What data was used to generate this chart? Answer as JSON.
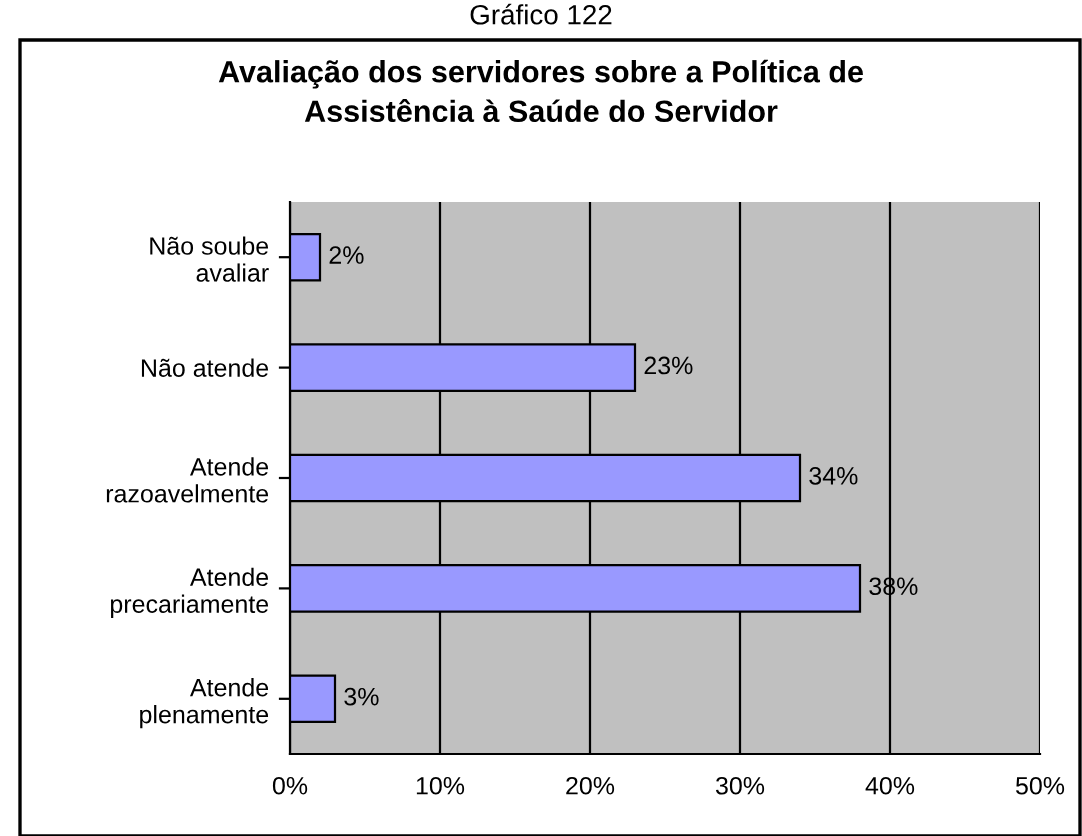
{
  "chart_data": {
    "type": "bar",
    "orientation": "horizontal",
    "title": "Avaliação dos servidores sobre a Política de\nAssistência à Saúde do Servidor",
    "annotations": [
      "Gráfico 122"
    ],
    "categories": [
      "Não soube\navaliar",
      "Não atende",
      "Atende\nrazoavelmente",
      "Atende\nprecariamente",
      "Atende\nplenamente"
    ],
    "values": [
      2,
      23,
      34,
      38,
      3
    ],
    "value_labels": [
      "2%",
      "23%",
      "34%",
      "38%",
      "3%"
    ],
    "color": "#9999ff",
    "xlim": [
      0,
      50
    ],
    "xticks": [
      {
        "value": 0,
        "label": "0%"
      },
      {
        "value": 10,
        "label": "10%"
      },
      {
        "value": 20,
        "label": "20%"
      },
      {
        "value": 30,
        "label": "30%"
      },
      {
        "value": 40,
        "label": "40%"
      },
      {
        "value": 50,
        "label": "50%"
      }
    ],
    "grid": "x",
    "legend": false
  }
}
